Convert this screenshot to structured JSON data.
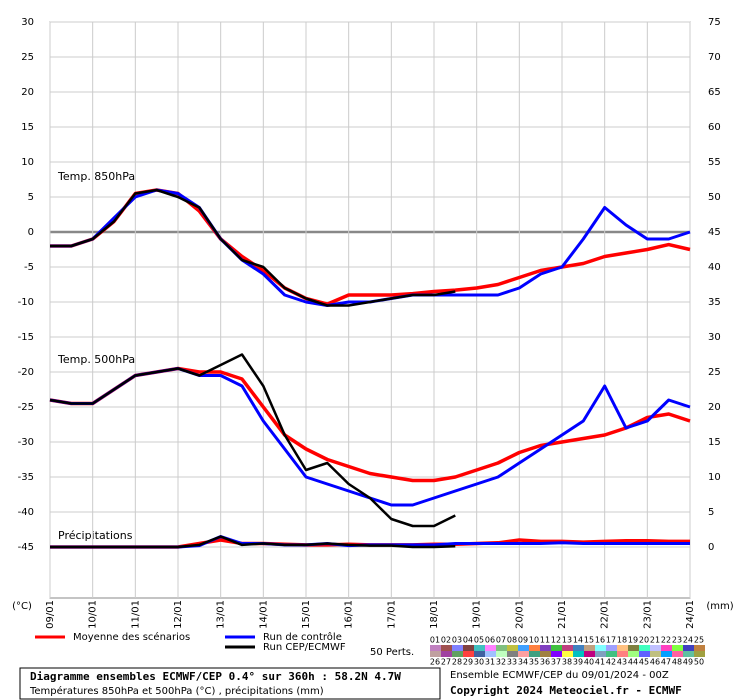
{
  "chart_data": {
    "type": "line",
    "panel_labels": [
      "Temp. 850hPa",
      "Temp. 500hPa",
      "Précipitations"
    ],
    "y_unit": "(°C)",
    "y2_unit": "(mm)",
    "x": [
      0,
      12,
      24,
      36,
      48,
      60,
      72,
      84,
      96,
      108,
      120,
      132,
      144,
      156,
      168,
      180,
      192,
      204,
      216,
      228,
      240,
      252,
      264,
      276,
      288,
      300,
      312,
      324,
      336,
      348,
      360
    ],
    "xlim": [
      0,
      360
    ],
    "xticks": [
      {
        "value": 0,
        "label": "09/01"
      },
      {
        "value": 24,
        "label": "10/01"
      },
      {
        "value": 48,
        "label": "11/01"
      },
      {
        "value": 72,
        "label": "12/01"
      },
      {
        "value": 96,
        "label": "13/01"
      },
      {
        "value": 120,
        "label": "14/01"
      },
      {
        "value": 144,
        "label": "15/01"
      },
      {
        "value": 168,
        "label": "16/01"
      },
      {
        "value": 192,
        "label": "17/01"
      },
      {
        "value": 216,
        "label": "18/01"
      },
      {
        "value": 240,
        "label": "19/01"
      },
      {
        "value": 264,
        "label": "20/01"
      },
      {
        "value": 288,
        "label": "21/01"
      },
      {
        "value": 312,
        "label": "22/01"
      },
      {
        "value": 336,
        "label": "23/01"
      },
      {
        "value": 360,
        "label": "24/01"
      }
    ],
    "ylim": [
      -52,
      30
    ],
    "yticks": [
      30,
      25,
      20,
      15,
      10,
      5,
      0,
      -5,
      -10,
      -15,
      -20,
      -25,
      -30,
      -35,
      -40,
      -45
    ],
    "y2lim": [
      -7,
      75
    ],
    "y2ticks": [
      75,
      70,
      65,
      60,
      55,
      50,
      45,
      40,
      35,
      30,
      25,
      20,
      15,
      10,
      5,
      0
    ],
    "grid": true,
    "series": [
      {
        "name": "Moyenne des scénarios",
        "color": "#ff0000",
        "t850": [
          -2,
          -2,
          -1,
          1.5,
          5.5,
          6,
          5.5,
          3,
          -1,
          -3.5,
          -5.5,
          -8,
          -9.5,
          -10.3,
          -9,
          -9,
          -9,
          -8.8,
          -8.5,
          -8.3,
          -8,
          -7.5,
          -6.5,
          -5.5,
          -5,
          -4.5,
          -3.5,
          -3,
          -2.5,
          -1.8,
          -2.5
        ],
        "t500": [
          -24,
          -24.5,
          -24.5,
          -22.5,
          -20.5,
          -20,
          -19.5,
          -20,
          -20,
          -21,
          -25,
          -29,
          -31,
          -32.5,
          -33.5,
          -34.5,
          -35,
          -35.5,
          -35.5,
          -35,
          -34,
          -33,
          -31.5,
          -30.5,
          -30,
          -29.5,
          -29,
          -28,
          -26.5,
          -26,
          -27
        ],
        "precip": [
          0,
          0,
          0,
          0,
          0,
          0,
          0,
          0.5,
          1,
          0.5,
          0.5,
          0.4,
          0.3,
          0.3,
          0.4,
          0.3,
          0.3,
          0.3,
          0.4,
          0.4,
          0.5,
          0.6,
          1,
          0.8,
          0.8,
          0.7,
          0.8,
          0.9,
          0.9,
          0.8,
          0.8
        ]
      },
      {
        "name": "Run de contrôle",
        "color": "#0000ff",
        "t850": [
          -2,
          -2,
          -1,
          2,
          5,
          6,
          5.5,
          3.5,
          -1,
          -4,
          -6,
          -9,
          -10,
          -10.5,
          -10,
          -10,
          -9.5,
          -9,
          -9,
          -9,
          -9,
          -9,
          -8,
          -6,
          -5,
          -1,
          3.5,
          1,
          -1,
          -1,
          0
        ],
        "t500": [
          -24,
          -24.5,
          -24.5,
          -22.5,
          -20.5,
          -20,
          -19.5,
          -20.5,
          -20.5,
          -22,
          -27,
          -31,
          -35,
          -36,
          -37,
          -38,
          -39,
          -39,
          -38,
          -37,
          -36,
          -35,
          -33,
          -31,
          -29,
          -27,
          -22,
          -28,
          -27,
          -24,
          -25
        ],
        "precip": [
          0,
          0,
          0,
          0,
          0,
          0,
          0,
          0.2,
          1.5,
          0.5,
          0.5,
          0.3,
          0.3,
          0.5,
          0.2,
          0.3,
          0.3,
          0.3,
          0.3,
          0.5,
          0.5,
          0.5,
          0.5,
          0.5,
          0.6,
          0.5,
          0.5,
          0.5,
          0.5,
          0.5,
          0.5
        ]
      },
      {
        "name": "Run CEP/ECMWF",
        "color": "#000000",
        "t850": [
          -2,
          -2,
          -1,
          1.5,
          5.5,
          6,
          5,
          3.5,
          -1,
          -4,
          -5,
          -8,
          -9.5,
          -10.5,
          -10.5,
          -10,
          -9.5,
          -9,
          -9,
          -8.5,
          null,
          null,
          null,
          null,
          null,
          null,
          null,
          null,
          null,
          null,
          null
        ],
        "t500": [
          -24,
          -24.5,
          -24.5,
          -22.5,
          -20.5,
          -20,
          -19.5,
          -20.5,
          -19,
          -17.5,
          -22,
          -29,
          -34,
          -33,
          -36,
          -38,
          -41,
          -42,
          -42,
          -40.5,
          null,
          null,
          null,
          null,
          null,
          null,
          null,
          null,
          null,
          null,
          null
        ],
        "precip": [
          0,
          0,
          0,
          0,
          0,
          0,
          0,
          0.3,
          1.5,
          0.3,
          0.5,
          0.3,
          0.3,
          0.5,
          0.3,
          0.2,
          0.2,
          0,
          0,
          0.1,
          null,
          null,
          null,
          null,
          null,
          null,
          null,
          null,
          null,
          null,
          null
        ]
      }
    ],
    "perturbations_label": "50 Perts.",
    "perturbations": [
      {
        "label": "01",
        "color": "#c080c0"
      },
      {
        "label": "02",
        "color": "#a05050"
      },
      {
        "label": "03",
        "color": "#8080ff"
      },
      {
        "label": "04",
        "color": "#804040"
      },
      {
        "label": "05",
        "color": "#40c0c0"
      },
      {
        "label": "06",
        "color": "#ff80ff"
      },
      {
        "label": "07",
        "color": "#80c080"
      },
      {
        "label": "08",
        "color": "#c0c040"
      },
      {
        "label": "09",
        "color": "#40a0ff"
      },
      {
        "label": "10",
        "color": "#ff8040"
      },
      {
        "label": "11",
        "color": "#8040c0"
      },
      {
        "label": "12",
        "color": "#40c040"
      },
      {
        "label": "13",
        "color": "#c04080"
      },
      {
        "label": "14",
        "color": "#4080c0"
      },
      {
        "label": "15",
        "color": "#c0a080"
      },
      {
        "label": "16",
        "color": "#80ffff"
      },
      {
        "label": "17",
        "color": "#a0a0ff"
      },
      {
        "label": "18",
        "color": "#ffc080"
      },
      {
        "label": "19",
        "color": "#808040"
      },
      {
        "label": "20",
        "color": "#40ffc0"
      },
      {
        "label": "21",
        "color": "#c0c0ff"
      },
      {
        "label": "22",
        "color": "#ff40c0"
      },
      {
        "label": "23",
        "color": "#80ff40"
      },
      {
        "label": "24",
        "color": "#4040c0"
      },
      {
        "label": "25",
        "color": "#c08040"
      },
      {
        "label": "26",
        "color": "#c0a0a0"
      },
      {
        "label": "27",
        "color": "#a040a0"
      },
      {
        "label": "28",
        "color": "#60a060"
      },
      {
        "label": "29",
        "color": "#ff4040"
      },
      {
        "label": "30",
        "color": "#4060a0"
      },
      {
        "label": "31",
        "color": "#a0c0ff"
      },
      {
        "label": "32",
        "color": "#c0ffc0"
      },
      {
        "label": "33",
        "color": "#808080"
      },
      {
        "label": "34",
        "color": "#ffa0a0"
      },
      {
        "label": "35",
        "color": "#40a080"
      },
      {
        "label": "36",
        "color": "#a08040"
      },
      {
        "label": "37",
        "color": "#8000ff"
      },
      {
        "label": "38",
        "color": "#ffff40"
      },
      {
        "label": "39",
        "color": "#00c0c0"
      },
      {
        "label": "40",
        "color": "#c00080"
      },
      {
        "label": "41",
        "color": "#80a0c0"
      },
      {
        "label": "42",
        "color": "#40c080"
      },
      {
        "label": "43",
        "color": "#ff8080"
      },
      {
        "label": "44",
        "color": "#a0ff80"
      },
      {
        "label": "45",
        "color": "#6060ff"
      },
      {
        "label": "46",
        "color": "#c0c080"
      },
      {
        "label": "47",
        "color": "#00a0ff"
      },
      {
        "label": "48",
        "color": "#ff60a0"
      },
      {
        "label": "49",
        "color": "#60c0a0"
      },
      {
        "label": "50",
        "color": "#a0a040"
      }
    ],
    "footer_title": "Diagramme ensembles ECMWF/CEP 0.4° sur 360h : 58.2N 4.7W",
    "footer_subtitle": "Températures 850hPa et 500hPa (°C) , précipitations (mm)",
    "run_info": "Ensemble ECMWF/CEP du 09/01/2024 - 00Z",
    "copyright": "Copyright 2024 Meteociel.fr - ECMWF"
  }
}
